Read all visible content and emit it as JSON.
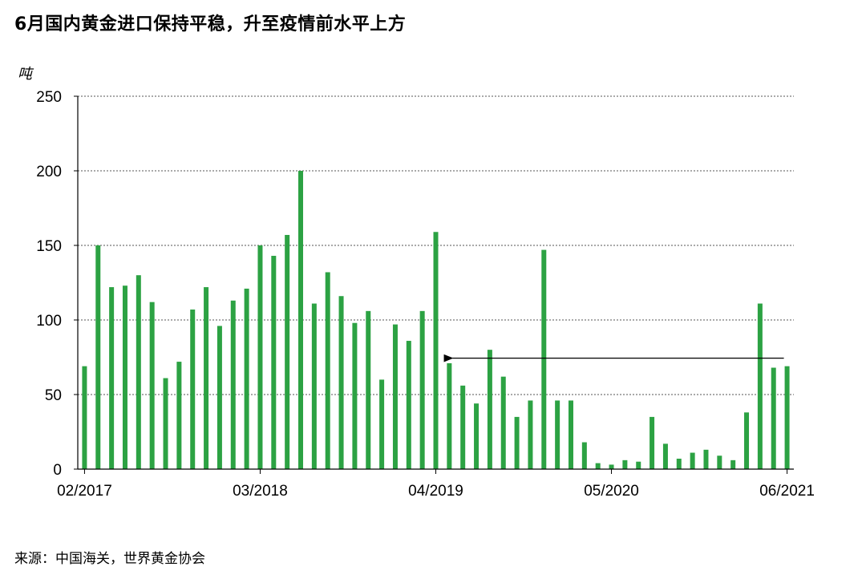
{
  "title": "6月国内黄金进口保持平稳，升至疫情前水平上方",
  "source": "来源：中国海关，世界黄金协会",
  "chart_data": {
    "type": "bar",
    "ylabel": "吨",
    "ylim": [
      0,
      250
    ],
    "yticks": [
      0,
      50,
      100,
      150,
      200,
      250
    ],
    "grid": true,
    "bar_color": "#2ca243",
    "xtick_labels": [
      {
        "index": 0,
        "label": "02/2017"
      },
      {
        "index": 13,
        "label": "03/2018"
      },
      {
        "index": 26,
        "label": "04/2019"
      },
      {
        "index": 39,
        "label": "05/2020"
      },
      {
        "index": 52,
        "label": "06/2021"
      }
    ],
    "categories": [
      "2017-02",
      "2017-03",
      "2017-04",
      "2017-05",
      "2017-06",
      "2017-07",
      "2017-08",
      "2017-09",
      "2017-10",
      "2017-11",
      "2017-12",
      "2018-01",
      "2018-02",
      "2018-03",
      "2018-04",
      "2018-05",
      "2018-06",
      "2018-07",
      "2018-08",
      "2018-09",
      "2018-10",
      "2018-11",
      "2018-12",
      "2019-01",
      "2019-02",
      "2019-03",
      "2019-04",
      "2019-05",
      "2019-06",
      "2019-07",
      "2019-08",
      "2019-09",
      "2019-10",
      "2019-11",
      "2019-12",
      "2020-01",
      "2020-02",
      "2020-03",
      "2020-04",
      "2020-05",
      "2020-06",
      "2020-07",
      "2020-08",
      "2020-09",
      "2020-10",
      "2020-11",
      "2020-12",
      "2021-01",
      "2021-02",
      "2021-03",
      "2021-04",
      "2021-05",
      "2021-06"
    ],
    "values": [
      69,
      150,
      122,
      123,
      130,
      112,
      61,
      72,
      107,
      122,
      96,
      113,
      121,
      150,
      143,
      157,
      200,
      111,
      132,
      116,
      98,
      106,
      60,
      97,
      86,
      106,
      159,
      71,
      56,
      44,
      80,
      62,
      35,
      46,
      147,
      46,
      46,
      18,
      4,
      3,
      6,
      5,
      35,
      17,
      7,
      11,
      13,
      9,
      6,
      38,
      111,
      68,
      69
    ],
    "annotation": {
      "type": "arrow",
      "from_index": 52,
      "to_index": 27,
      "value": 69
    }
  }
}
